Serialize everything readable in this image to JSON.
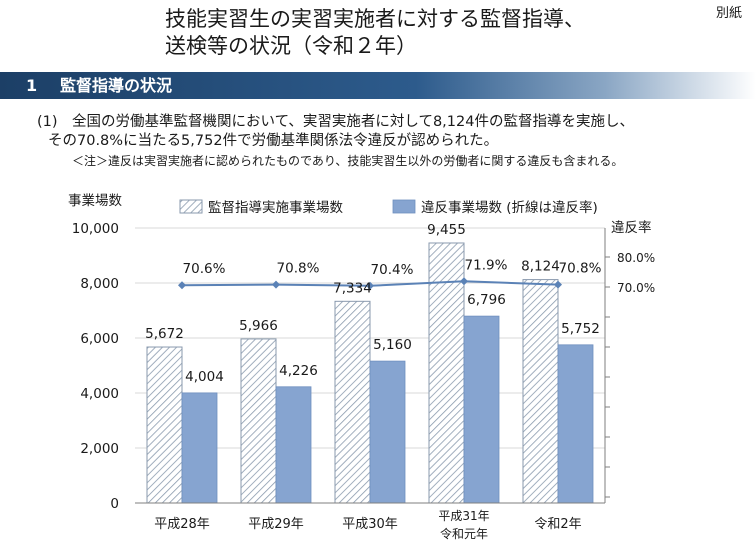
{
  "header": {
    "attachment_label": "別紙",
    "title_line1": "技能実習生の実習実施者に対する監督指導、",
    "title_line2": "送検等の状況（令和２年）"
  },
  "section": {
    "number": "1",
    "title": "監督指導の状況"
  },
  "paragraph": {
    "number": "(1)",
    "line1": "全国の労働基準監督機関において、実習実施者に対して8,124件の監督指導を実施し、",
    "line2": "その70.8%に当たる5,752件で労働基準関係法令違反が認められた。",
    "note": "＜注＞違反は実習実施者に認められたものであり、技能実習生以外の労働者に関する違反も含まれる。"
  },
  "chart_data": {
    "type": "bar",
    "categories": [
      "平成28年",
      "平成29年",
      "平成30年",
      "平成31年\n令和元年",
      "令和2年"
    ],
    "series": [
      {
        "name": "監督指導実施事業場数",
        "values": [
          5672,
          5966,
          7334,
          9455,
          8124
        ],
        "labels": [
          "5,672",
          "5,966",
          "7,334",
          "9,455",
          "8,124"
        ],
        "fill": "hatched",
        "color": "#8a9aae"
      },
      {
        "name": "違反事業場数 (折線は違反率)",
        "values": [
          4004,
          4226,
          5160,
          6796,
          5752
        ],
        "labels": [
          "4,004",
          "4,226",
          "5,160",
          "6,796",
          "5,752"
        ],
        "fill": "solid",
        "color": "#86a4d0"
      }
    ],
    "line": {
      "name": "違反率",
      "values": [
        70.6,
        70.8,
        70.4,
        71.9,
        70.8
      ],
      "labels": [
        "70.6%",
        "70.8%",
        "70.4%",
        "71.9%",
        "70.8%"
      ],
      "color": "#5b82b6"
    },
    "ylabel": "事業場数",
    "ylim": [
      0,
      10000
    ],
    "yticks": [
      0,
      2000,
      4000,
      6000,
      8000,
      10000
    ],
    "ytick_labels": [
      "0",
      "2,000",
      "4,000",
      "6,000",
      "8,000",
      "10,000"
    ],
    "y2label": "違反率",
    "y2ticks": [
      70.0,
      80.0
    ],
    "y2tick_labels": [
      "70.0%",
      "80.0%"
    ],
    "legend_position": "top"
  }
}
